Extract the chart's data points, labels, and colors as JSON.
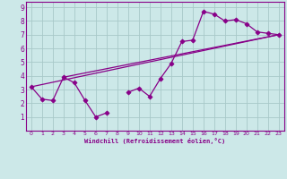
{
  "xlabel": "Windchill (Refroidissement éolien,°C)",
  "bg_color": "#cce8e8",
  "grid_color": "#a8c8c8",
  "line_color": "#880088",
  "spine_color": "#880088",
  "xlim": [
    -0.5,
    23.5
  ],
  "ylim": [
    0,
    9.4
  ],
  "xticks": [
    0,
    1,
    2,
    3,
    4,
    5,
    6,
    7,
    8,
    9,
    10,
    11,
    12,
    13,
    14,
    15,
    16,
    17,
    18,
    19,
    20,
    21,
    22,
    23
  ],
  "yticks": [
    1,
    2,
    3,
    4,
    5,
    6,
    7,
    8,
    9
  ],
  "seg1_x": [
    0,
    1,
    2,
    3,
    4,
    5,
    6,
    7
  ],
  "seg1_y": [
    3.2,
    2.3,
    2.2,
    3.9,
    3.5,
    2.2,
    1.0,
    1.3
  ],
  "seg2_x": [
    9,
    10,
    11,
    12,
    13,
    14,
    15,
    16,
    17,
    18,
    19,
    20,
    21,
    22,
    23
  ],
  "seg2_y": [
    2.8,
    3.1,
    2.5,
    3.8,
    4.9,
    6.5,
    6.6,
    8.7,
    8.5,
    8.0,
    8.1,
    7.8,
    7.2,
    7.1,
    7.0
  ],
  "trend1_x": [
    0,
    23
  ],
  "trend1_y": [
    3.2,
    7.0
  ],
  "trend2_x": [
    3,
    23
  ],
  "trend2_y": [
    3.9,
    7.0
  ]
}
